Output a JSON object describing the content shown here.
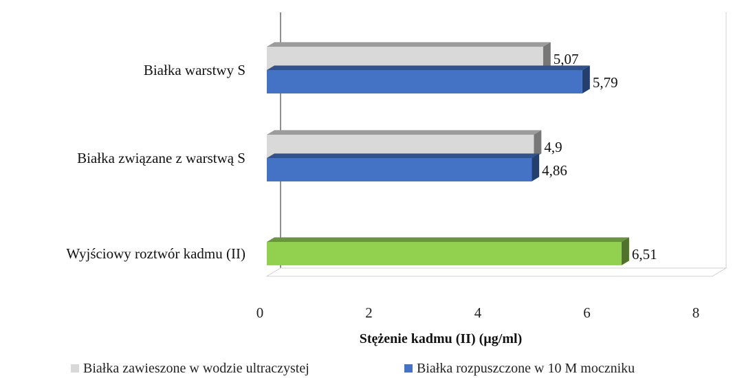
{
  "chart_data": {
    "type": "bar",
    "orientation": "horizontal",
    "style": "3d",
    "categories": [
      "Białka warstwy S",
      "Białka związane z warstwą S",
      "Wyjściowy roztwór kadmu (II)"
    ],
    "series": [
      {
        "name": "Białka zawieszone w wodzie ultraczystej",
        "color": "#d9d9d9",
        "values": [
          5.07,
          4.9,
          null
        ],
        "labels": [
          "5,07",
          "4,9",
          ""
        ]
      },
      {
        "name": "Białka rozpuszczone w 10 M moczniku",
        "color": "#4472c4",
        "values": [
          5.79,
          4.86,
          null
        ],
        "labels": [
          "5,79",
          "4,86",
          ""
        ]
      },
      {
        "name": "",
        "color": "#92d050",
        "values": [
          null,
          null,
          6.51
        ],
        "labels": [
          "",
          "",
          "6,51"
        ]
      }
    ],
    "xlabel": "Stężenie kadmu (II) (µg/ml)",
    "xlim": [
      0,
      8
    ],
    "xticks": [
      "0",
      "2",
      "4",
      "6",
      "8"
    ],
    "grid": false,
    "legend_position": "bottom"
  }
}
